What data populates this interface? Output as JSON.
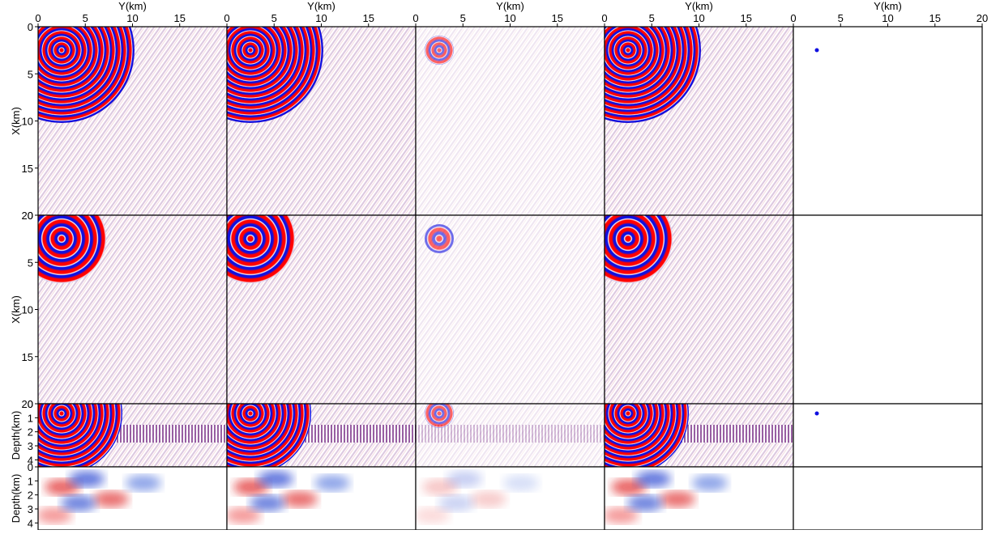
{
  "chart_data": {
    "type": "image-grid",
    "xlabel": "Y(km)",
    "xlim": [
      0,
      20
    ],
    "xticks": [
      0,
      5,
      10,
      15,
      20
    ],
    "rows": [
      {
        "ylabel": "X(km)",
        "ylim": [
          0,
          20
        ],
        "yticks": [
          0,
          5,
          10,
          15,
          20
        ]
      },
      {
        "ylabel": "X(km)",
        "ylim": [
          0,
          20
        ],
        "yticks": [
          0,
          5,
          10,
          15,
          20
        ]
      },
      {
        "ylabel": "Depth(km)",
        "ylim": [
          0,
          4.5
        ],
        "yticks": [
          0,
          1,
          2,
          3,
          4
        ]
      },
      {
        "ylabel": "Depth(km)",
        "ylim": [
          0,
          4.5
        ],
        "yticks": [
          0,
          1,
          2,
          3,
          4
        ]
      }
    ]
  }
}
